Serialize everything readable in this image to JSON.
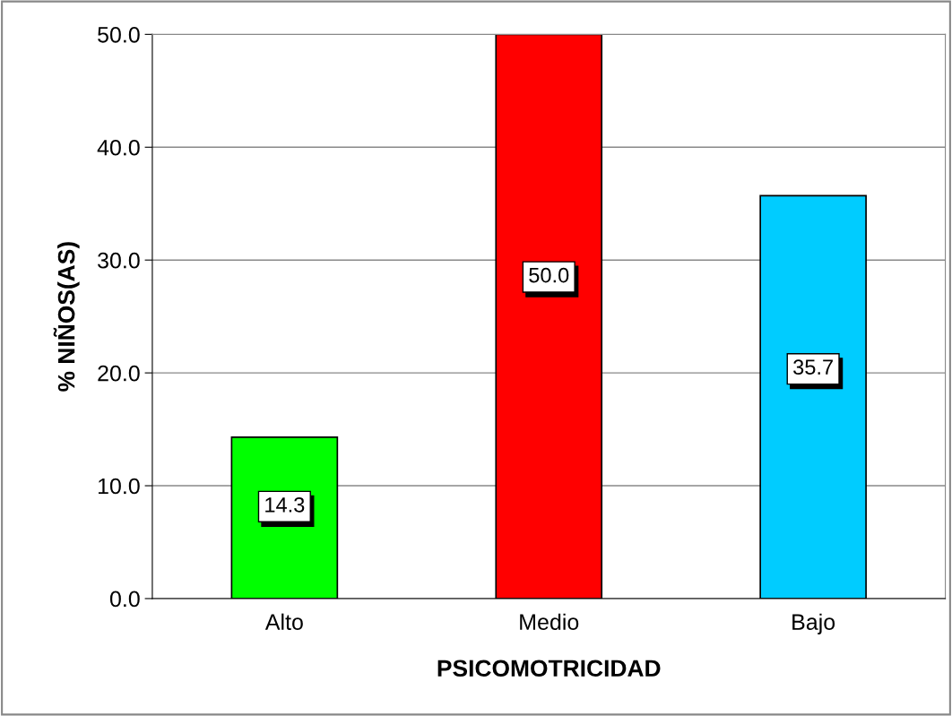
{
  "chart_data": {
    "type": "bar",
    "xlabel": "PSICOMOTRICIDAD",
    "ylabel": "% NIÑOS(AS)",
    "categories": [
      "Alto",
      "Medio",
      "Bajo"
    ],
    "values": [
      14.3,
      50.0,
      35.7
    ],
    "colors": [
      "#00ff00",
      "#ff0000",
      "#00ccff"
    ],
    "value_labels": [
      "14.3",
      "50.0",
      "35.7"
    ],
    "ylim": [
      0,
      50
    ],
    "yticks": [
      {
        "value": 0,
        "label": "0.0"
      },
      {
        "value": 10,
        "label": "10.0"
      },
      {
        "value": 20,
        "label": "20.0"
      },
      {
        "value": 30,
        "label": "30.0"
      },
      {
        "value": 40,
        "label": "40.0"
      },
      {
        "value": 50,
        "label": "50.0"
      }
    ],
    "grid": "y"
  }
}
